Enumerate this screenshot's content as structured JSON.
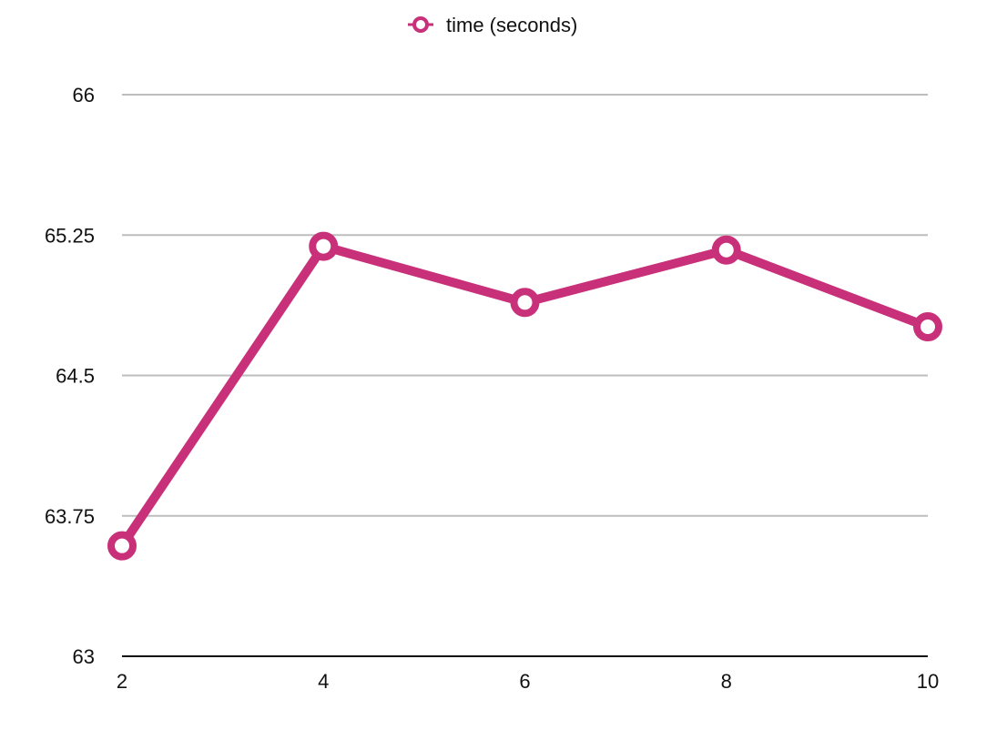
{
  "chart_data": {
    "type": "line",
    "x": [
      2,
      4,
      6,
      8,
      10
    ],
    "x_tick_labels": [
      "2",
      "4",
      "6",
      "8",
      "10"
    ],
    "y_tick_labels": [
      "63",
      "63.75",
      "64.5",
      "65.25",
      "66"
    ],
    "y_ticks": [
      63,
      63.75,
      64.5,
      65.25,
      66
    ],
    "ylim": [
      63,
      66
    ],
    "xlim": [
      2,
      10
    ],
    "grid": true,
    "legend_position": "top-center",
    "series": [
      {
        "name": "time (seconds)",
        "color": "#c9307a",
        "values": [
          63.59,
          65.19,
          64.89,
          65.17,
          64.76
        ]
      }
    ]
  },
  "colors": {
    "series": "#c9307a",
    "grid": "#bdbdbd",
    "axis": "#111111",
    "background": "#ffffff"
  },
  "icons": {
    "legend_marker": "ring-marker-icon"
  }
}
